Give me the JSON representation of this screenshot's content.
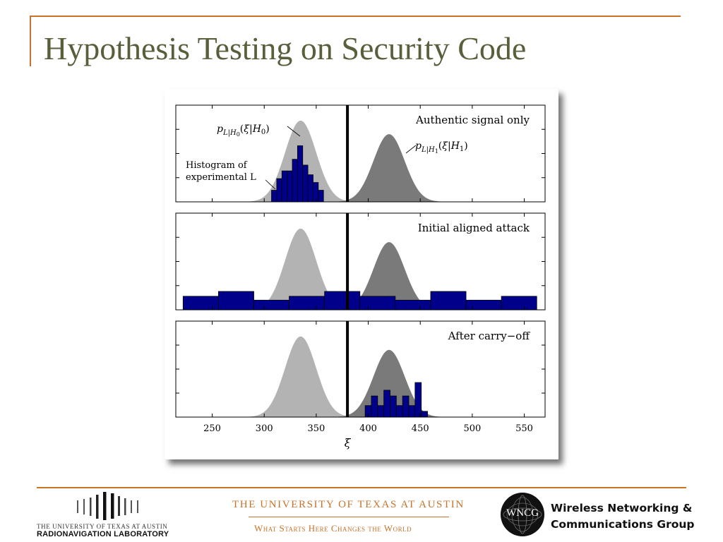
{
  "slide": {
    "title": "Hypothesis Testing on Security Code"
  },
  "footer": {
    "rnl_univ": "THE UNIVERSITY OF TEXAS AT AUSTIN",
    "rnl_lab": "RADIONAVIGATION LABORATORY",
    "ut_name": "THE UNIVERSITY OF TEXAS AT AUSTIN",
    "ut_motto": "What Starts Here Changes the World",
    "wncg_letters": "WNCG",
    "wncg_line1": "Wireless Networking &",
    "wncg_line2": "Communications Group"
  },
  "colors": {
    "accent": "#c8722a",
    "title": "#5a5e3a",
    "h0_fill": "#b3b3b3",
    "h1_fill": "#7a7a7a",
    "hist_fill": "#00008b"
  },
  "chart_data": {
    "type": "histogram",
    "xlabel": "ξ",
    "xlim": [
      215,
      570
    ],
    "xticks": [
      250,
      300,
      350,
      400,
      450,
      500,
      550
    ],
    "threshold": 380,
    "distributions": {
      "h0": {
        "label": "p_{L|H0}(ξ|H0)",
        "mean": 335,
        "sd": 15
      },
      "h1": {
        "label": "p_{L|H1}(ξ|H1)",
        "mean": 420,
        "sd": 15
      }
    },
    "histogram_label": [
      "Histogram of",
      "experimental L"
    ],
    "panels": [
      {
        "title": "Authentic signal only",
        "hist_bins": [
          {
            "x0": 307,
            "x1": 312,
            "h": 0.12
          },
          {
            "x0": 312,
            "x1": 317,
            "h": 0.24
          },
          {
            "x0": 317,
            "x1": 322,
            "h": 0.32
          },
          {
            "x0": 322,
            "x1": 327,
            "h": 0.32
          },
          {
            "x0": 327,
            "x1": 332,
            "h": 0.44
          },
          {
            "x0": 332,
            "x1": 337,
            "h": 0.58
          },
          {
            "x0": 337,
            "x1": 342,
            "h": 0.38
          },
          {
            "x0": 342,
            "x1": 347,
            "h": 0.28
          },
          {
            "x0": 347,
            "x1": 352,
            "h": 0.2
          },
          {
            "x0": 352,
            "x1": 357,
            "h": 0.12
          }
        ]
      },
      {
        "title": "Initial aligned attack",
        "hist_bins": [
          {
            "x0": 222,
            "x1": 256,
            "h": 0.14
          },
          {
            "x0": 256,
            "x1": 290,
            "h": 0.19
          },
          {
            "x0": 290,
            "x1": 324,
            "h": 0.1
          },
          {
            "x0": 324,
            "x1": 358,
            "h": 0.14
          },
          {
            "x0": 358,
            "x1": 392,
            "h": 0.19
          },
          {
            "x0": 392,
            "x1": 426,
            "h": 0.14
          },
          {
            "x0": 426,
            "x1": 460,
            "h": 0.1
          },
          {
            "x0": 460,
            "x1": 494,
            "h": 0.19
          },
          {
            "x0": 494,
            "x1": 528,
            "h": 0.1
          },
          {
            "x0": 528,
            "x1": 562,
            "h": 0.14
          }
        ]
      },
      {
        "title": "After carry−off",
        "hist_bins": [
          {
            "x0": 397,
            "x1": 403,
            "h": 0.12
          },
          {
            "x0": 403,
            "x1": 409,
            "h": 0.22
          },
          {
            "x0": 409,
            "x1": 415,
            "h": 0.12
          },
          {
            "x0": 415,
            "x1": 421,
            "h": 0.28
          },
          {
            "x0": 421,
            "x1": 427,
            "h": 0.22
          },
          {
            "x0": 427,
            "x1": 433,
            "h": 0.12
          },
          {
            "x0": 433,
            "x1": 439,
            "h": 0.22
          },
          {
            "x0": 439,
            "x1": 445,
            "h": 0.12
          },
          {
            "x0": 445,
            "x1": 451,
            "h": 0.36
          },
          {
            "x0": 451,
            "x1": 457,
            "h": 0.06
          }
        ]
      }
    ]
  }
}
